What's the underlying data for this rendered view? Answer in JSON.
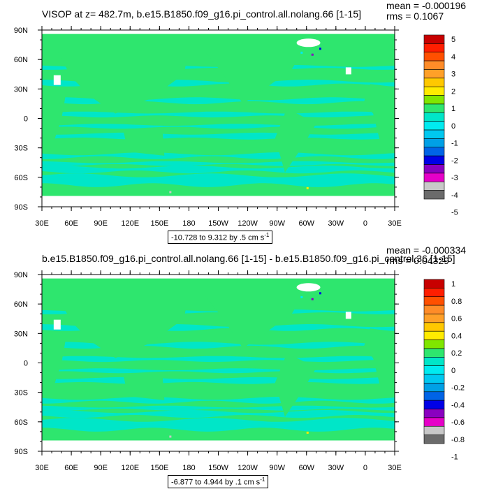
{
  "colors": {
    "palette": [
      "#6b6b6b",
      "#c8c8c8",
      "#e600c8",
      "#8a00c0",
      "#0000e6",
      "#0064e6",
      "#00a0e6",
      "#00c8f0",
      "#00ebf0",
      "#00e6c8",
      "#2ee66e",
      "#80e600",
      "#ffeb00",
      "#ffc800",
      "#ffa028",
      "#ff8c28",
      "#ff5000",
      "#ff1e00",
      "#c80000"
    ],
    "ocean_base": "#2ee66e",
    "anomaly_band": "#00e6c8"
  },
  "chart_data": [
    {
      "type": "heatmap",
      "title": "VISOP at z= 482.7m, b.e15.B1850.f09_g16.pi_control.all.nolang.66 [1-15]",
      "mean_text": "mean = -0.000196",
      "rms_text": "rms = 0.1067",
      "range_text": "-10.728 to 9.312 by .5 cm s",
      "range_unit_exp": "-1",
      "x_ticks": [
        "30E",
        "60E",
        "90E",
        "120E",
        "150E",
        "180",
        "150W",
        "120W",
        "90W",
        "60W",
        "30W",
        "0",
        "30E"
      ],
      "y_ticks": [
        "90N",
        "60N",
        "30N",
        "0",
        "30S",
        "60S",
        "90S"
      ],
      "colorbar_labels": [
        "5",
        "4",
        "3",
        "2",
        "1",
        "0",
        "-1",
        "-2",
        "-3",
        "-4",
        "-5"
      ],
      "vmin": -10.728,
      "vmax": 9.312
    },
    {
      "type": "heatmap",
      "title": "b.e15.B1850.f09_g16.pi_control.all.nolang.66 [1-15] - b.e15.B1850.f09_g16.pi_control.36 [1-15]",
      "mean_text": "mean = -0.000334",
      "rms_text": "rms = 0.04329",
      "range_text": "-6.877 to 4.944 by .1 cm s",
      "range_unit_exp": "-1",
      "x_ticks": [
        "30E",
        "60E",
        "90E",
        "120E",
        "150E",
        "180",
        "150W",
        "120W",
        "90W",
        "60W",
        "30W",
        "0",
        "30E"
      ],
      "y_ticks": [
        "90N",
        "60N",
        "30N",
        "0",
        "30S",
        "60S",
        "90S"
      ],
      "colorbar_labels": [
        "1",
        "0.8",
        "0.6",
        "0.4",
        "0.2",
        "0",
        "-0.2",
        "-0.4",
        "-0.6",
        "-0.8",
        "-1"
      ],
      "vmin": -6.877,
      "vmax": 4.944
    }
  ]
}
